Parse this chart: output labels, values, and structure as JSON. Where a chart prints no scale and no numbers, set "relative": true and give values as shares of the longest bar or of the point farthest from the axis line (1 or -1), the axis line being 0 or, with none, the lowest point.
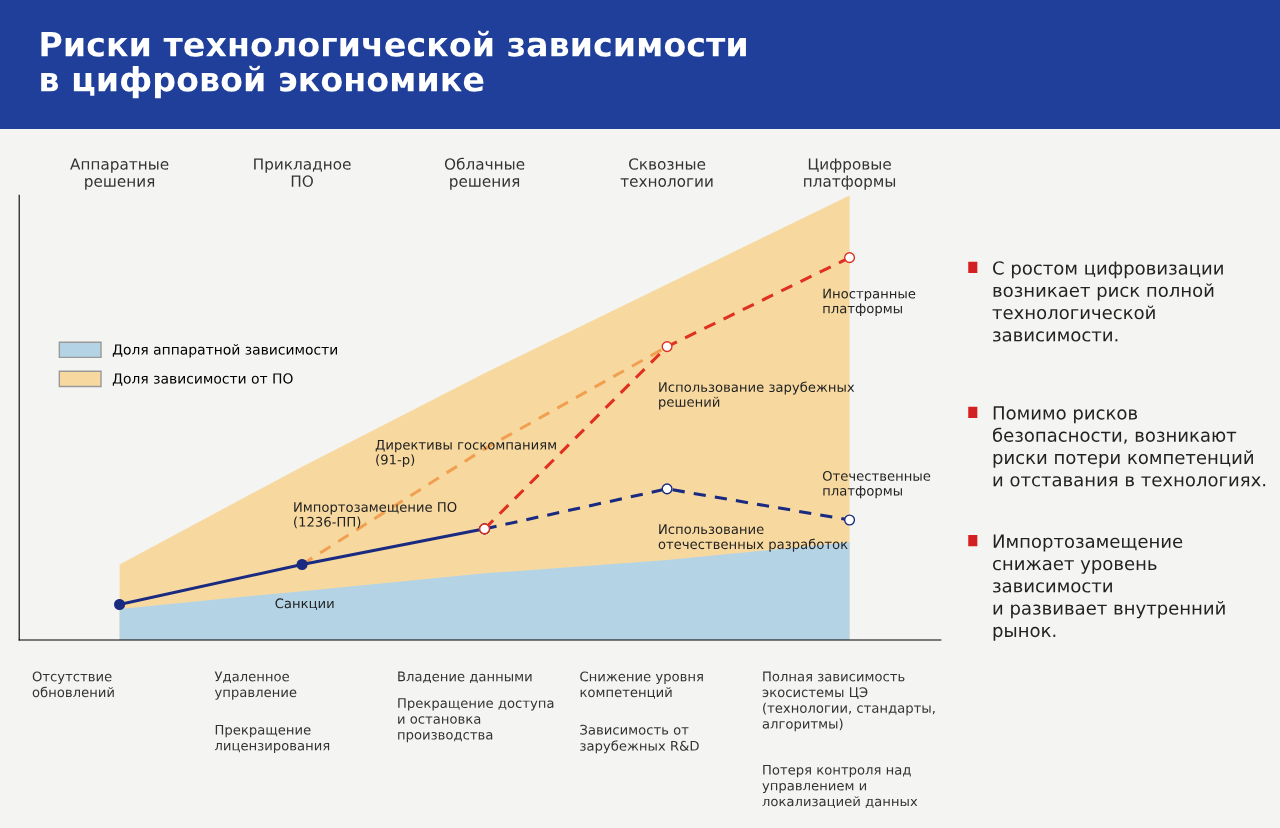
{
  "chart_data": {
    "type": "line",
    "title": "Риски технологической зависимости\nв цифровой экономике",
    "relative": true,
    "legend": "left",
    "categories": [
      "Аппаратные\nрешения",
      "Прикладное\nПО",
      "Облачные\nрешения",
      "Сквозные\nтехнологии",
      "Цифровые\nплатформы"
    ],
    "series": [
      {
        "name": "Доля зависимости от ПО",
        "type": "area",
        "color": "#f7d9a0",
        "values": [
          0.17,
          0.39,
          0.6,
          0.8,
          1.0
        ]
      },
      {
        "name": "Доля аппаратной зависимости",
        "type": "area",
        "color": "#b4d4e6",
        "values": [
          0.07,
          0.11,
          0.15,
          0.18,
          0.22
        ]
      },
      {
        "color": "#f0a050",
        "line_style": "dashed",
        "marker": "none",
        "values": [
          null,
          0.17,
          0.43,
          0.66,
          null
        ]
      },
      {
        "color": "#1a2a80",
        "line_style": "solid",
        "marker": "circle",
        "values": [
          0.08,
          0.17,
          0.25,
          null,
          null
        ]
      },
      {
        "color": "#1a2a80",
        "line_style": "dashed",
        "marker": "circle",
        "values": [
          null,
          null,
          0.25,
          0.34,
          0.27
        ]
      },
      {
        "color": "#e03020",
        "line_style": "dashed",
        "marker": "circle",
        "values": [
          null,
          null,
          0.25,
          0.66,
          0.86
        ]
      }
    ],
    "annotations": [
      "Санкции",
      "Импортозамещение ПО\n(1236-ПП)",
      "Директивы госкомпаниям\n(91-р)",
      "Использование зарубежных\nрешений",
      "Использование\nотечественных разработок",
      "Иностранные\nплатформы",
      "Отечественные\nплатформы",
      "Отсутствие\nобновлений",
      "Удаленное\nуправление",
      "Прекращение\nлицензирования",
      "Владение данными",
      "Прекращение доступа\nи остановка\nпроизводства",
      "Снижение уровня\nкомпетенций",
      "Зависимость от\nзарубежных R&D",
      "Полная зависимость\nэкосистемы ЦЭ\n(технологии, стандарты,\nалгоритмы)",
      "Потеря контроля над\nуправлением и\nлокализацией данных",
      "С ростом цифровизации\nвозникает риск полной\nтехнологической\nзависимости.",
      "Помимо рисков\nбезопасности, возникают\nриски потери компетенций\nи отставания в технологиях.",
      "Импортозамещение\nснижает уровень\nзависимости\nи развивает внутренний\nрынок."
    ]
  }
}
